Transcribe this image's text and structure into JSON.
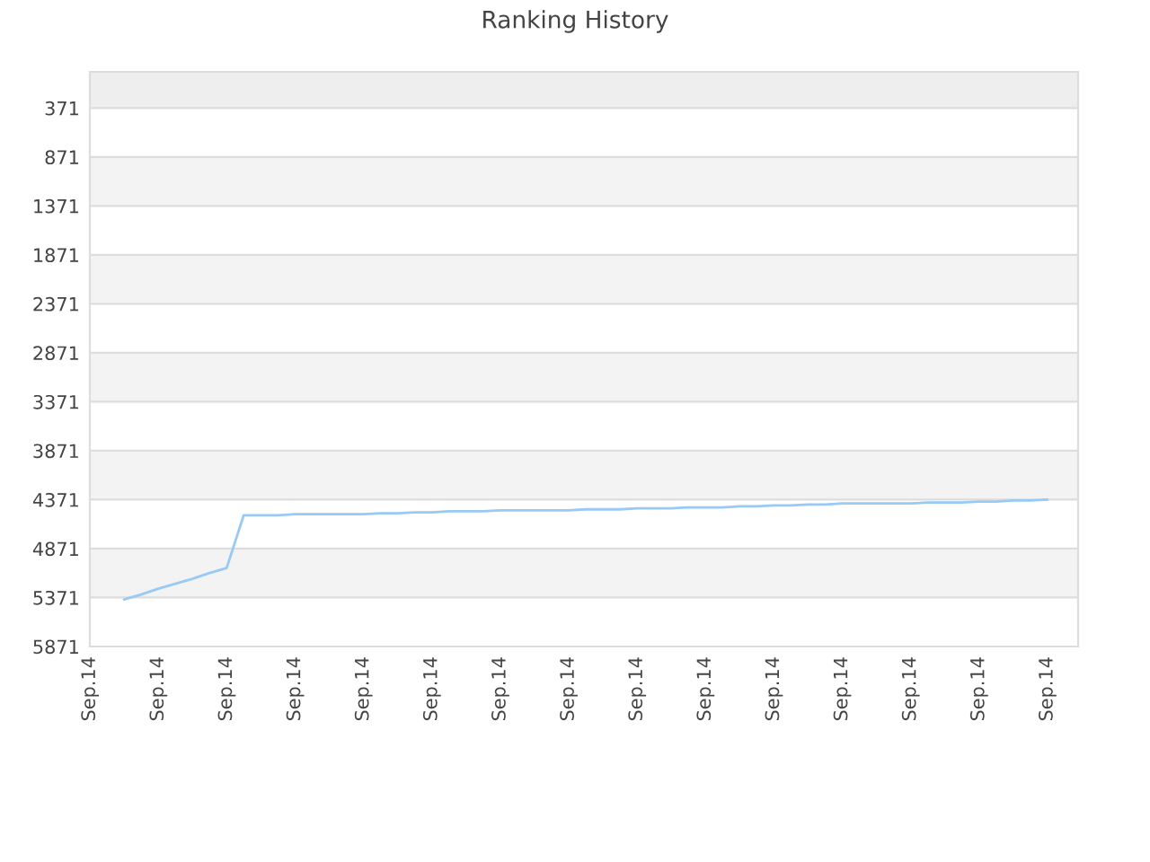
{
  "chart_data": {
    "type": "line",
    "title": "Ranking History",
    "categories": [
      "Sep.14",
      null,
      null,
      null,
      "Sep.14",
      null,
      null,
      null,
      "Sep.14",
      null,
      null,
      null,
      "Sep.14",
      null,
      null,
      null,
      "Sep.14",
      null,
      null,
      null,
      "Sep.14",
      null,
      null,
      null,
      "Sep.14",
      null,
      null,
      null,
      "Sep.14",
      null,
      null,
      null,
      "Sep.14",
      null,
      null,
      null,
      "Sep.14",
      null,
      null,
      null,
      "Sep.14",
      null,
      null,
      null,
      "Sep.14",
      null,
      null,
      null,
      "Sep.14",
      null,
      null,
      null,
      "Sep.14",
      null,
      null,
      null,
      "Sep.14",
      null
    ],
    "series": [
      {
        "color": "#99c9f5",
        "values": [
          null,
          null,
          5390,
          5340,
          5280,
          5230,
          5180,
          5120,
          5070,
          4530,
          4530,
          4530,
          4520,
          4520,
          4520,
          4520,
          4520,
          4510,
          4510,
          4500,
          4500,
          4490,
          4490,
          4490,
          4480,
          4480,
          4480,
          4480,
          4480,
          4470,
          4470,
          4470,
          4460,
          4460,
          4460,
          4450,
          4450,
          4450,
          4440,
          4440,
          4430,
          4430,
          4420,
          4420,
          4410,
          4410,
          4410,
          4410,
          4410,
          4400,
          4400,
          4400,
          4390,
          4390,
          4380,
          4380,
          4370,
          null
        ]
      }
    ],
    "ylim": [
      5871,
      1
    ],
    "yticks": [
      371,
      871,
      1371,
      1871,
      2371,
      2871,
      3371,
      3871,
      4371,
      4871,
      5371,
      5871
    ],
    "bands": [
      {
        "axis": "y",
        "from": 1,
        "to": 371,
        "color": "#eeeeee"
      },
      {
        "axis": "y",
        "from": 871,
        "to": 1371,
        "color": "#f3f3f3"
      },
      {
        "axis": "y",
        "from": 1871,
        "to": 2371,
        "color": "#f3f3f3"
      },
      {
        "axis": "y",
        "from": 2871,
        "to": 3371,
        "color": "#f3f3f3"
      },
      {
        "axis": "y",
        "from": 3871,
        "to": 4371,
        "color": "#f3f3f3"
      },
      {
        "axis": "y",
        "from": 4871,
        "to": 5371,
        "color": "#f3f3f3"
      }
    ],
    "grid": "y",
    "marker": "none",
    "line_style": "solid"
  }
}
